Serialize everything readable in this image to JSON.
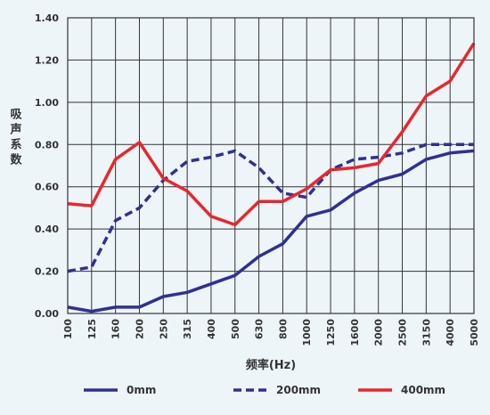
{
  "chart_data": {
    "type": "line",
    "title": "",
    "xlabel": "频率(Hz)",
    "ylabel": "吸声系数",
    "categories": [
      "100",
      "125",
      "160",
      "200",
      "250",
      "315",
      "400",
      "500",
      "630",
      "800",
      "1000",
      "1250",
      "1600",
      "2000",
      "2500",
      "3150",
      "4000",
      "5000"
    ],
    "ylim": [
      0,
      1.4
    ],
    "yticks": [
      "0.00",
      "0.20",
      "0.40",
      "0.60",
      "0.80",
      "1.00",
      "1.20",
      "1.40"
    ],
    "grid": true,
    "legend_position": "bottom",
    "series": [
      {
        "name": "0mm",
        "style": "solid",
        "color": "#2e3192",
        "values": [
          0.03,
          0.01,
          0.03,
          0.03,
          0.08,
          0.1,
          0.14,
          0.18,
          0.27,
          0.33,
          0.46,
          0.49,
          0.57,
          0.63,
          0.66,
          0.73,
          0.76,
          0.77
        ]
      },
      {
        "name": "200mm",
        "style": "dashed",
        "color": "#2e3192",
        "values": [
          0.2,
          0.22,
          0.44,
          0.5,
          0.63,
          0.72,
          0.74,
          0.77,
          0.69,
          0.57,
          0.55,
          0.68,
          0.73,
          0.74,
          0.76,
          0.8,
          0.8,
          0.8
        ]
      },
      {
        "name": "400mm",
        "style": "solid",
        "color": "#e8262d",
        "values": [
          0.52,
          0.51,
          0.73,
          0.81,
          0.64,
          0.58,
          0.46,
          0.42,
          0.53,
          0.53,
          0.59,
          0.68,
          0.69,
          0.71,
          0.86,
          1.03,
          1.1,
          1.28
        ]
      }
    ]
  }
}
